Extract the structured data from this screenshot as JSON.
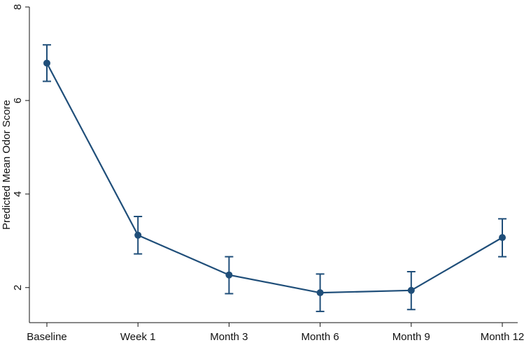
{
  "chart_data": {
    "type": "line",
    "title": "",
    "xlabel": "",
    "ylabel": "Predicted Mean Odor Score",
    "ylim": [
      1.25,
      8.0
    ],
    "yticks": [
      2,
      4,
      6,
      8
    ],
    "y_tick_labels": [
      "2",
      "4",
      "6",
      "8"
    ],
    "categories": [
      "Baseline",
      "Week 1",
      "Month 3",
      "Month 6",
      "Month 9",
      "Month 12"
    ],
    "series": [
      {
        "values": [
          6.8,
          3.12,
          2.27,
          1.89,
          1.94,
          3.07
        ],
        "ci_low": [
          6.41,
          2.72,
          1.87,
          1.49,
          1.53,
          2.66
        ],
        "ci_high": [
          7.19,
          3.52,
          2.66,
          2.29,
          2.34,
          3.47
        ]
      }
    ],
    "grid": false,
    "legend": "none",
    "line_color": "#1f4e79",
    "marker_color": "#1f4e79"
  }
}
